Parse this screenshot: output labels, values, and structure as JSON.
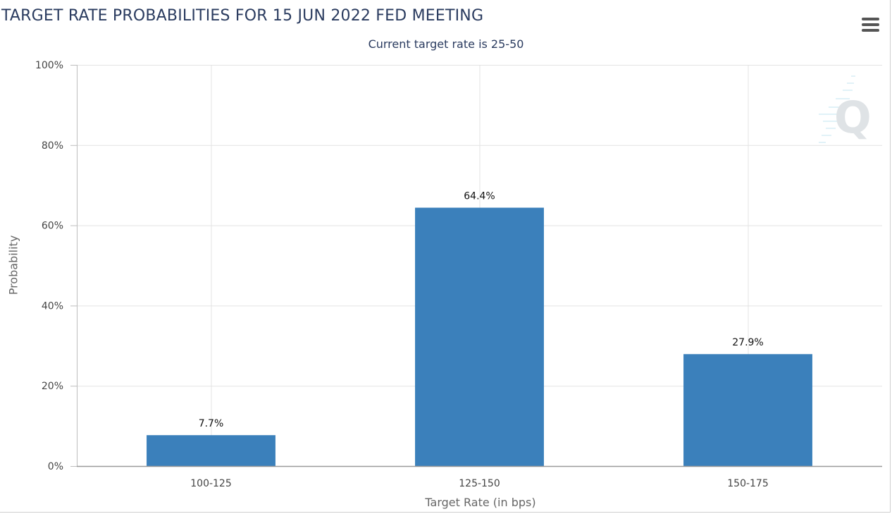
{
  "chart_data": {
    "type": "bar",
    "title": "TARGET RATE PROBABILITIES FOR 15 JUN 2022 FED MEETING",
    "subtitle": "Current target rate is 25-50",
    "xlabel": "Target Rate (in bps)",
    "ylabel": "Probability",
    "categories": [
      "100-125",
      "125-150",
      "150-175"
    ],
    "values": [
      7.7,
      64.4,
      27.9
    ],
    "value_labels": [
      "7.7%",
      "64.4%",
      "27.9%"
    ],
    "ylim": [
      0,
      100
    ],
    "y_ticks": [
      0,
      20,
      40,
      60,
      80,
      100
    ],
    "y_tick_labels": [
      "0%",
      "20%",
      "40%",
      "60%",
      "80%",
      "100%"
    ],
    "grid": true,
    "bar_color": "#3b80bb"
  },
  "menu": {
    "icon": "hamburger-menu-icon"
  },
  "watermark": {
    "icon": "cme-q-logo-icon"
  }
}
